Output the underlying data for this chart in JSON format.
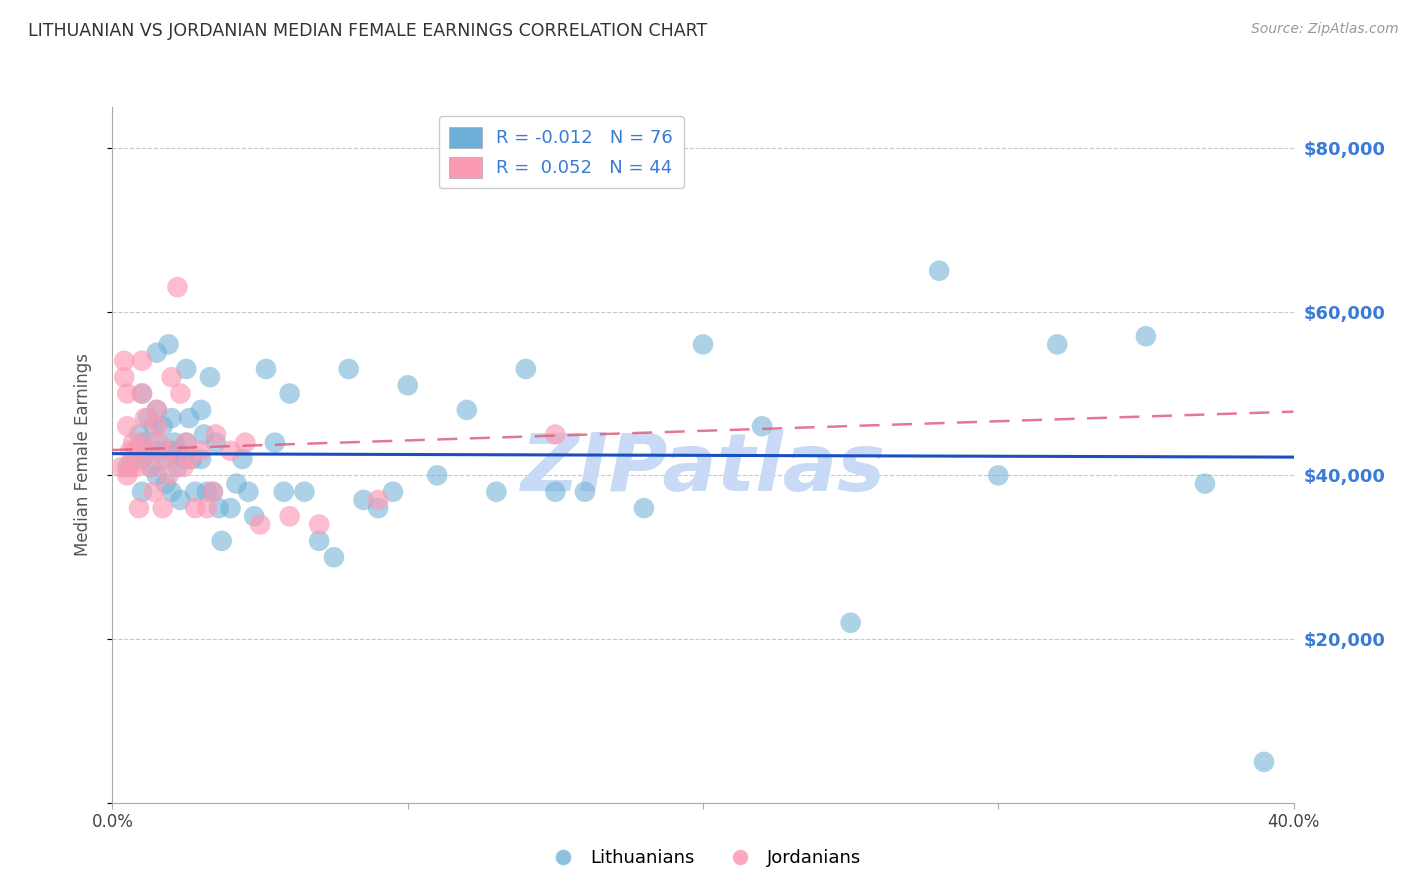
{
  "title": "LITHUANIAN VS JORDANIAN MEDIAN FEMALE EARNINGS CORRELATION CHART",
  "source": "Source: ZipAtlas.com",
  "ylabel": "Median Female Earnings",
  "x_min": 0.0,
  "x_max": 0.4,
  "y_min": 0,
  "y_max": 85000,
  "yticks": [
    0,
    20000,
    40000,
    60000,
    80000
  ],
  "ytick_labels": [
    "",
    "$20,000",
    "$40,000",
    "$60,000",
    "$80,000"
  ],
  "xticks": [
    0.0,
    0.1,
    0.2,
    0.3,
    0.4
  ],
  "group1_color": "#6baed6",
  "group2_color": "#fc9ab4",
  "group1_label": "Lithuanians",
  "group2_label": "Jordanians",
  "R1": -0.012,
  "N1": 76,
  "R2": 0.052,
  "N2": 44,
  "trend1_color": "#1a4fbd",
  "trend2_color": "#e06080",
  "background_color": "#ffffff",
  "grid_color": "#c8c8c8",
  "right_ytick_color": "#3a7bd5",
  "watermark_color": "#c8daf5",
  "watermark_text": "ZIPatlas",
  "scatter1_x": [
    0.005,
    0.007,
    0.008,
    0.009,
    0.01,
    0.01,
    0.01,
    0.01,
    0.012,
    0.012,
    0.013,
    0.014,
    0.015,
    0.015,
    0.015,
    0.015,
    0.016,
    0.017,
    0.018,
    0.018,
    0.019,
    0.02,
    0.02,
    0.02,
    0.021,
    0.022,
    0.022,
    0.023,
    0.024,
    0.025,
    0.025,
    0.026,
    0.027,
    0.028,
    0.03,
    0.03,
    0.031,
    0.032,
    0.033,
    0.034,
    0.035,
    0.036,
    0.037,
    0.04,
    0.042,
    0.044,
    0.046,
    0.048,
    0.052,
    0.055,
    0.058,
    0.06,
    0.065,
    0.07,
    0.075,
    0.08,
    0.085,
    0.09,
    0.095,
    0.1,
    0.11,
    0.12,
    0.13,
    0.14,
    0.15,
    0.16,
    0.18,
    0.2,
    0.22,
    0.25,
    0.28,
    0.3,
    0.32,
    0.35,
    0.37,
    0.39
  ],
  "scatter1_y": [
    41000,
    42000,
    43000,
    45000,
    50000,
    44000,
    42000,
    38000,
    47000,
    43000,
    41000,
    46000,
    55000,
    48000,
    44000,
    40000,
    43000,
    46000,
    42000,
    39000,
    56000,
    47000,
    43000,
    38000,
    44000,
    43000,
    41000,
    37000,
    42000,
    53000,
    44000,
    47000,
    42000,
    38000,
    48000,
    42000,
    45000,
    38000,
    52000,
    38000,
    44000,
    36000,
    32000,
    36000,
    39000,
    42000,
    38000,
    35000,
    53000,
    44000,
    38000,
    50000,
    38000,
    32000,
    30000,
    53000,
    37000,
    36000,
    38000,
    51000,
    40000,
    48000,
    38000,
    53000,
    38000,
    38000,
    36000,
    56000,
    46000,
    22000,
    65000,
    40000,
    56000,
    57000,
    39000,
    5000
  ],
  "scatter2_x": [
    0.003,
    0.004,
    0.004,
    0.005,
    0.005,
    0.005,
    0.006,
    0.006,
    0.007,
    0.008,
    0.008,
    0.009,
    0.01,
    0.01,
    0.01,
    0.011,
    0.012,
    0.013,
    0.014,
    0.015,
    0.015,
    0.016,
    0.017,
    0.018,
    0.019,
    0.02,
    0.02,
    0.022,
    0.023,
    0.024,
    0.025,
    0.026,
    0.028,
    0.03,
    0.032,
    0.034,
    0.035,
    0.04,
    0.045,
    0.05,
    0.06,
    0.07,
    0.09,
    0.15
  ],
  "scatter2_y": [
    41000,
    54000,
    52000,
    50000,
    46000,
    40000,
    43000,
    41000,
    44000,
    43000,
    41000,
    36000,
    54000,
    50000,
    44000,
    47000,
    43000,
    41000,
    38000,
    48000,
    46000,
    44000,
    36000,
    42000,
    40000,
    52000,
    43000,
    63000,
    50000,
    41000,
    44000,
    42000,
    36000,
    43000,
    36000,
    38000,
    45000,
    43000,
    44000,
    34000,
    35000,
    34000,
    37000,
    45000
  ]
}
